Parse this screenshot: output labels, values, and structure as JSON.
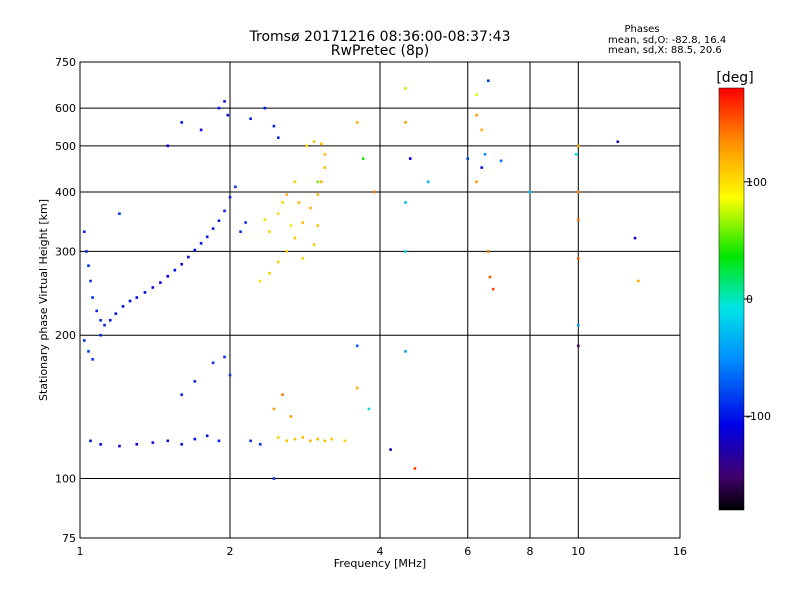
{
  "chart_data": {
    "type": "scatter",
    "title": "Tromsø 20171216 08:36:00-08:37:43",
    "subtitle": "RwPretec (8p)",
    "xlabel": "Frequency [MHz]",
    "ylabel": "Stationary phase Virtual Height [km]",
    "x_scale": "log",
    "y_scale": "log",
    "xlim": [
      1,
      16
    ],
    "ylim": [
      75,
      750
    ],
    "x_ticks": [
      1,
      2,
      4,
      6,
      8,
      10,
      16
    ],
    "y_ticks": [
      75,
      100,
      200,
      300,
      400,
      500,
      600,
      750
    ],
    "x_gridlines": [
      2,
      4,
      6,
      8,
      10
    ],
    "y_gridlines": [
      100,
      200,
      300,
      400,
      500,
      600
    ],
    "grid": true,
    "stats": {
      "heading": "Phases",
      "line_o": "mean, sd,O: -82.8, 16.4",
      "line_x": "mean, sd,X:  88.5, 20.6"
    },
    "colorbar": {
      "label": "[deg]",
      "ticks": [
        100,
        0,
        -100
      ],
      "range": [
        -180,
        180
      ],
      "colormap": "rainbow"
    },
    "series": [
      {
        "points": [
          [
            1.02,
            330,
            -95
          ],
          [
            1.03,
            300,
            -92
          ],
          [
            1.04,
            280,
            -90
          ],
          [
            1.05,
            260,
            -88
          ],
          [
            1.06,
            240,
            -90
          ],
          [
            1.08,
            225,
            -93
          ],
          [
            1.1,
            215,
            -95
          ],
          [
            1.12,
            210,
            -98
          ],
          [
            1.15,
            215,
            -100
          ],
          [
            1.18,
            222,
            -102
          ],
          [
            1.22,
            230,
            -103
          ],
          [
            1.26,
            236,
            -105
          ],
          [
            1.3,
            240,
            -106
          ],
          [
            1.35,
            246,
            -107
          ],
          [
            1.4,
            252,
            -108
          ],
          [
            1.45,
            258,
            -108
          ],
          [
            1.5,
            266,
            -108
          ],
          [
            1.55,
            274,
            -108
          ],
          [
            1.6,
            282,
            -107
          ],
          [
            1.65,
            292,
            -106
          ],
          [
            1.7,
            302,
            -104
          ],
          [
            1.75,
            312,
            -103
          ],
          [
            1.8,
            322,
            -101
          ],
          [
            1.85,
            335,
            -100
          ],
          [
            1.9,
            348,
            -98
          ],
          [
            1.95,
            365,
            -96
          ],
          [
            2.0,
            390,
            -94
          ],
          [
            2.05,
            410,
            -92
          ],
          [
            2.1,
            330,
            -88
          ],
          [
            2.15,
            345,
            -85
          ],
          [
            1.02,
            195,
            -88
          ],
          [
            1.04,
            185,
            -86
          ],
          [
            1.06,
            178,
            -88
          ],
          [
            1.1,
            200,
            -92
          ],
          [
            1.2,
            360,
            -90
          ],
          [
            1.05,
            120,
            -105
          ],
          [
            1.1,
            118,
            -106
          ],
          [
            1.2,
            117,
            -107
          ],
          [
            1.3,
            118,
            -106
          ],
          [
            1.4,
            119,
            -105
          ],
          [
            1.5,
            120,
            -104
          ],
          [
            1.6,
            118,
            -103
          ],
          [
            1.7,
            121,
            -102
          ],
          [
            1.8,
            123,
            -100
          ],
          [
            1.9,
            120,
            -99
          ],
          [
            1.6,
            150,
            -96
          ],
          [
            1.7,
            160,
            -92
          ],
          [
            1.85,
            175,
            -90
          ],
          [
            1.95,
            180,
            -88
          ],
          [
            2.0,
            165,
            -86
          ],
          [
            1.9,
            600,
            -100
          ],
          [
            1.95,
            620,
            -102
          ],
          [
            1.98,
            580,
            -104
          ],
          [
            2.2,
            570,
            -95
          ],
          [
            2.35,
            600,
            -98
          ],
          [
            2.45,
            550,
            -96
          ],
          [
            2.5,
            520,
            -92
          ],
          [
            1.75,
            540,
            -105
          ],
          [
            1.6,
            560,
            -100
          ],
          [
            1.5,
            500,
            -108
          ],
          [
            2.2,
            120,
            -92
          ],
          [
            2.3,
            118,
            -88
          ],
          [
            2.45,
            100,
            -90
          ]
        ]
      },
      {
        "points": [
          [
            2.3,
            260,
            100
          ],
          [
            2.4,
            270,
            105
          ],
          [
            2.5,
            285,
            108
          ],
          [
            2.6,
            300,
            110
          ],
          [
            2.7,
            320,
            112
          ],
          [
            2.8,
            345,
            115
          ],
          [
            2.9,
            370,
            118
          ],
          [
            3.0,
            395,
            120
          ],
          [
            3.05,
            420,
            118
          ],
          [
            3.1,
            450,
            116
          ],
          [
            3.1,
            480,
            114
          ],
          [
            3.05,
            505,
            112
          ],
          [
            2.95,
            510,
            110
          ],
          [
            2.85,
            500,
            108
          ],
          [
            2.7,
            420,
            106
          ],
          [
            2.55,
            380,
            105
          ],
          [
            2.4,
            330,
            104
          ],
          [
            2.35,
            350,
            102
          ],
          [
            2.5,
            360,
            100
          ],
          [
            2.65,
            340,
            98
          ],
          [
            2.8,
            290,
            106
          ],
          [
            2.95,
            310,
            110
          ],
          [
            3.0,
            340,
            114
          ],
          [
            2.75,
            380,
            118
          ],
          [
            2.6,
            395,
            120
          ],
          [
            2.5,
            122,
            105
          ],
          [
            2.6,
            120,
            110
          ],
          [
            2.7,
            121,
            112
          ],
          [
            2.8,
            122,
            115
          ],
          [
            2.9,
            120,
            118
          ],
          [
            3.0,
            121,
            116
          ],
          [
            3.1,
            120,
            112
          ],
          [
            3.2,
            121,
            108
          ],
          [
            3.4,
            120,
            104
          ],
          [
            2.45,
            140,
            125
          ],
          [
            2.55,
            150,
            140
          ],
          [
            2.65,
            135,
            130
          ],
          [
            3.6,
            155,
            120
          ],
          [
            4.5,
            560,
            125
          ],
          [
            6.25,
            580,
            130
          ],
          [
            6.4,
            540,
            120
          ],
          [
            6.25,
            420,
            128
          ],
          [
            6.6,
            300,
            140
          ],
          [
            6.65,
            265,
            150
          ],
          [
            6.75,
            250,
            160
          ],
          [
            10.0,
            500,
            125
          ],
          [
            10.0,
            400,
            135
          ],
          [
            10.0,
            350,
            145
          ],
          [
            10.0,
            290,
            150
          ],
          [
            13.2,
            260,
            120
          ],
          [
            4.7,
            105,
            160
          ],
          [
            3.9,
            400,
            140
          ],
          [
            3.6,
            560,
            120
          ]
        ]
      },
      {
        "points": [
          [
            3.7,
            470,
            40
          ],
          [
            4.5,
            660,
            70
          ],
          [
            6.25,
            640,
            80
          ],
          [
            3.0,
            420,
            60
          ],
          [
            8.0,
            400,
            -20
          ],
          [
            6.4,
            450,
            -100
          ],
          [
            6.0,
            470,
            -80
          ],
          [
            7.0,
            465,
            -60
          ],
          [
            4.6,
            470,
            -110
          ],
          [
            4.5,
            380,
            -30
          ],
          [
            4.5,
            300,
            -20
          ],
          [
            5.0,
            420,
            -30
          ],
          [
            9.9,
            480,
            -10
          ],
          [
            10.0,
            210,
            -40
          ],
          [
            12.0,
            510,
            -130
          ],
          [
            13.0,
            320,
            -120
          ],
          [
            10.0,
            190,
            -150
          ],
          [
            4.5,
            185,
            -40
          ],
          [
            3.8,
            140,
            -10
          ],
          [
            3.6,
            190,
            -70
          ],
          [
            4.2,
            115,
            -130
          ],
          [
            6.6,
            685,
            -90
          ],
          [
            6.5,
            480,
            -50
          ]
        ]
      }
    ]
  }
}
